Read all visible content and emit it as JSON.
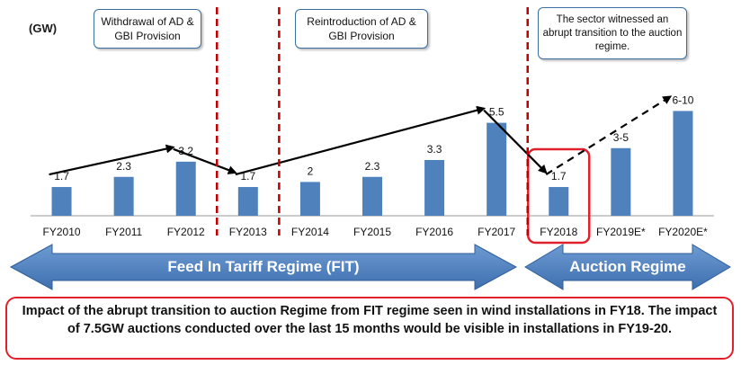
{
  "unit_label": "(GW)",
  "chart_data": {
    "type": "bar",
    "title": "",
    "xlabel": "",
    "ylabel": "GW",
    "ylim": [
      0,
      10
    ],
    "categories": [
      "FY2010",
      "FY2011",
      "FY2012",
      "FY2013",
      "FY2014",
      "FY2015",
      "FY2016",
      "FY2017",
      "FY2018",
      "FY2019E*",
      "FY2020E*"
    ],
    "values": [
      1.7,
      2.3,
      3.2,
      1.7,
      2,
      2.3,
      3.3,
      5.5,
      1.7,
      4,
      6.2
    ],
    "value_labels": [
      "1.7",
      "2.3",
      "3.2",
      "1.7",
      "2",
      "2.3",
      "3.3",
      "5.5",
      "1.7",
      "3-5",
      "6-10"
    ],
    "bar_color": "#4f81bd",
    "highlighted_category": "FY2018",
    "trend_arrows": [
      {
        "from": "FY2010",
        "to": "FY2012",
        "style": "solid"
      },
      {
        "from": "FY2012",
        "to": "FY2013",
        "style": "solid"
      },
      {
        "from": "FY2013",
        "to": "FY2017",
        "style": "solid"
      },
      {
        "from": "FY2017",
        "to": "FY2018",
        "style": "solid"
      },
      {
        "from": "FY2018",
        "to": "FY2020E*",
        "style": "dashed"
      }
    ]
  },
  "annotations": [
    {
      "text": "Withdrawal of AD & GBI Provision"
    },
    {
      "text": "Reintroduction of AD & GBI Provision"
    },
    {
      "text": "The sector witnessed an abrupt transition to the auction regime."
    }
  ],
  "regimes": {
    "fit": "Feed In Tariff Regime (FIT)",
    "auction": "Auction Regime"
  },
  "impact_note": "Impact of the abrupt transition to auction Regime from FIT regime seen in wind installations in FY18. The impact of 7.5GW auctions conducted over the last 15 months would be visible in installations in FY19-20.",
  "colors": {
    "bar": "#4f81bd",
    "divider": "#c00000",
    "highlight": "#e0202a",
    "band": "#4a7ebb",
    "callout_border": "#3a6ea5"
  }
}
